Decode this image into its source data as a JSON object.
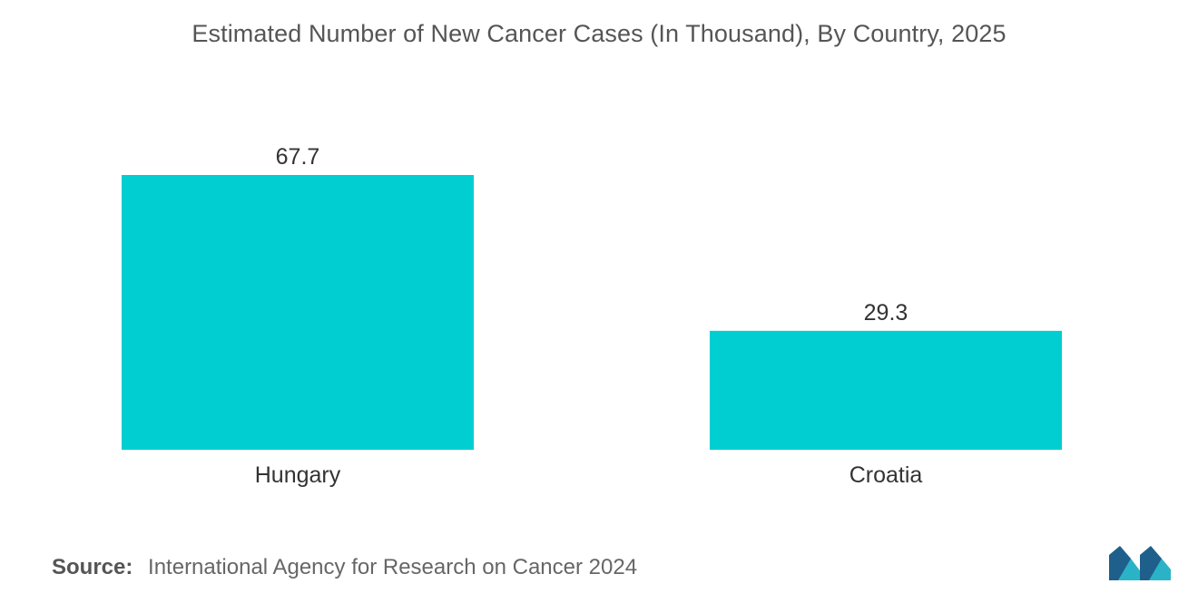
{
  "chart_data": {
    "type": "bar",
    "title": "Estimated Number of New Cancer Cases (In Thousand), By Country, 2025",
    "categories": [
      "Hungary",
      "Croatia"
    ],
    "values": [
      67.7,
      29.3
    ],
    "value_labels": [
      "67.7",
      "29.3"
    ],
    "xlabel": "",
    "ylabel": "",
    "ylim": [
      0,
      67.7
    ],
    "grid": false,
    "legend": "none",
    "bar_color": "#00CED1"
  },
  "source": {
    "label": "Source:",
    "text": "International Agency for Research on Cancer 2024"
  },
  "colors": {
    "title": "#555555",
    "label": "#333333",
    "logo_dark": "#1f5f8b",
    "logo_light": "#2ab3c6"
  }
}
